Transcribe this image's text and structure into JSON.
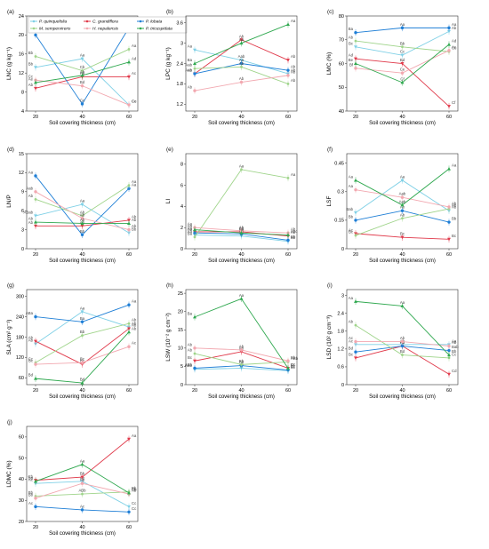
{
  "colors": {
    "P. quinquefolia": "#7fd0e6",
    "C. grandiflora": "#e0394a",
    "P. lobata": "#1f7fd6",
    "M. sempervirens": "#9fd48a",
    "H. nepalensis": "#f2a8b0",
    "P. tricuspidata": "#2fa84f"
  },
  "legend": [
    "P. quinquefolia",
    "C. grandiflora",
    "P. lobata",
    "M. sempervirens",
    "H. nepalensis",
    "P. tricuspidata"
  ],
  "x_label": "Soil covering thickness (cm)",
  "chart_data": [
    {
      "panel": "(a)",
      "type": "line",
      "ylabel": "LNC (g kg⁻¹)",
      "ylim": [
        4,
        24
      ],
      "yticks": [
        4,
        8,
        12,
        16,
        20,
        24
      ],
      "x": [
        20,
        40,
        60
      ],
      "series": [
        {
          "name": "P. quinquefolia",
          "values": [
            13.2,
            15.0,
            5.3
          ],
          "letters": [
            "Bb",
            "Aa",
            "Cc"
          ]
        },
        {
          "name": "C. grandiflora",
          "values": [
            8.8,
            11.2,
            11.2
          ],
          "letters": [
            "Ab",
            "Ab",
            "Ac"
          ]
        },
        {
          "name": "P. lobata",
          "values": [
            20.0,
            5.5,
            21.5
          ],
          "letters": [
            "Ba",
            "Cc",
            "Aa"
          ]
        },
        {
          "name": "M. sempervirens",
          "values": [
            15.5,
            12.5,
            17.0
          ],
          "letters": [
            "Bb",
            "Cb",
            "Aa"
          ]
        },
        {
          "name": "H. nepalensis",
          "values": [
            10.5,
            9.3,
            5.3
          ],
          "letters": [
            "Cc",
            "Bd",
            "Ce"
          ]
        },
        {
          "name": "P. tricuspidata",
          "values": [
            10.0,
            11.5,
            14.3
          ],
          "letters": [
            "Ae",
            "Ab",
            "Ad"
          ]
        }
      ]
    },
    {
      "panel": "(b)",
      "type": "line",
      "ylabel": "LPC (g kg⁻¹)",
      "ylim": [
        1.0,
        3.8
      ],
      "yticks": [
        1.2,
        1.8,
        2.4,
        3.0,
        3.6
      ],
      "x": [
        20,
        40,
        60
      ],
      "series": [
        {
          "name": "P. quinquefolia",
          "values": [
            2.8,
            2.5,
            2.1
          ],
          "letters": [
            "Aa",
            "Aab",
            "Ab"
          ]
        },
        {
          "name": "C. grandiflora",
          "values": [
            2.1,
            3.1,
            2.5
          ],
          "letters": [
            "Ab",
            "Ab",
            "Ab"
          ]
        },
        {
          "name": "P. lobata",
          "values": [
            2.1,
            2.4,
            2.2
          ],
          "letters": [
            "Aab",
            "Aa",
            "Ab"
          ]
        },
        {
          "name": "M. sempervirens",
          "values": [
            2.25,
            2.3,
            1.8
          ],
          "letters": [
            "Aab",
            "Ab",
            "Ab"
          ]
        },
        {
          "name": "H. nepalensis",
          "values": [
            1.6,
            1.85,
            2.05
          ],
          "letters": [
            "Ab",
            "Ab",
            "Ab"
          ]
        },
        {
          "name": "P. tricuspidata",
          "values": [
            2.4,
            3.0,
            3.55
          ],
          "letters": [
            "Ba",
            "Aa",
            "Aa"
          ]
        }
      ]
    },
    {
      "panel": "(c)",
      "type": "line",
      "ylabel": "LMC (%)",
      "ylim": [
        40,
        80
      ],
      "yticks": [
        40,
        50,
        60,
        70,
        80
      ],
      "x": [
        20,
        40,
        60
      ],
      "series": [
        {
          "name": "P. quinquefolia",
          "values": [
            67.0,
            63.5,
            73.5
          ],
          "letters": [
            "Bc",
            "Cc",
            "Ab"
          ]
        },
        {
          "name": "C. grandiflora",
          "values": [
            62.0,
            60.0,
            42.0
          ],
          "letters": [
            "Ad",
            "Bd",
            "Cf"
          ]
        },
        {
          "name": "P. lobata",
          "values": [
            73.0,
            75.0,
            75.0
          ],
          "letters": [
            "Ba",
            "Aa",
            "Aa"
          ]
        },
        {
          "name": "M. sempervirens",
          "values": [
            69.5,
            67.0,
            65.0
          ],
          "letters": [
            "Ab",
            "Bb",
            "Ce"
          ]
        },
        {
          "name": "H. nepalensis",
          "values": [
            58.0,
            56.0,
            65.5
          ],
          "letters": [
            "Bf",
            "Ce",
            "Ac"
          ]
        },
        {
          "name": "P. tricuspidata",
          "values": [
            60.0,
            52.0,
            68.0
          ],
          "letters": [
            "Be",
            "Cf",
            "Ad"
          ]
        }
      ]
    },
    {
      "panel": "(d)",
      "type": "line",
      "ylabel": "LN/P",
      "ylim": [
        0,
        15
      ],
      "yticks": [
        0,
        3,
        6,
        9,
        12,
        15
      ],
      "x": [
        20,
        40,
        60
      ],
      "series": [
        {
          "name": "P. quinquefolia",
          "values": [
            5.2,
            7.0,
            2.5
          ],
          "letters": [
            "ABab",
            "Aa",
            "Bb"
          ]
        },
        {
          "name": "C. grandiflora",
          "values": [
            3.6,
            3.6,
            4.5
          ],
          "letters": [
            "Ab",
            "Ab",
            "Ab"
          ]
        },
        {
          "name": "P. lobata",
          "values": [
            11.5,
            2.2,
            9.5
          ],
          "letters": [
            "Aa",
            "Bb",
            "Aa"
          ]
        },
        {
          "name": "M. sempervirens",
          "values": [
            7.8,
            5.2,
            10.0
          ],
          "letters": [
            "Ab",
            "Ab",
            "Aa"
          ]
        },
        {
          "name": "H. nepalensis",
          "values": [
            9.0,
            4.8,
            3.0
          ],
          "letters": [
            "Aab",
            "Ab",
            "Ab"
          ]
        },
        {
          "name": "P. tricuspidata",
          "values": [
            4.2,
            4.0,
            4.0
          ],
          "letters": [
            "Ab",
            "Ab",
            "Ab"
          ]
        }
      ]
    },
    {
      "panel": "(e)",
      "type": "line",
      "ylabel": "LI",
      "ylim": [
        0,
        9
      ],
      "yticks": [
        0,
        2,
        4,
        6,
        8
      ],
      "x": [
        20,
        40,
        60
      ],
      "series": [
        {
          "name": "P. quinquefolia",
          "values": [
            1.3,
            1.2,
            0.7
          ],
          "letters": [
            "Aa",
            "Ab",
            "Bb"
          ]
        },
        {
          "name": "C. grandiflora",
          "values": [
            1.6,
            1.6,
            1.2
          ],
          "letters": [
            "Aa",
            "Ab",
            "Ab"
          ]
        },
        {
          "name": "P. lobata",
          "values": [
            1.5,
            1.4,
            0.8
          ],
          "letters": [
            "Aa",
            "Ab",
            "Bb"
          ]
        },
        {
          "name": "M. sempervirens",
          "values": [
            1.1,
            7.5,
            6.7
          ],
          "letters": [
            "Ba",
            "Aa",
            "Aa"
          ]
        },
        {
          "name": "H. nepalensis",
          "values": [
            2.0,
            1.7,
            1.5
          ],
          "letters": [
            "Aa",
            "Ab",
            "Ab"
          ]
        },
        {
          "name": "P. tricuspidata",
          "values": [
            1.8,
            1.5,
            1.3
          ],
          "letters": [
            "Aa",
            "Ab",
            "Abc"
          ]
        }
      ]
    },
    {
      "panel": "(f)",
      "type": "line",
      "ylabel": "LSF",
      "ylim": [
        0,
        0.5
      ],
      "yticks": [
        0.0,
        0.15,
        0.3,
        0.45
      ],
      "x": [
        20,
        40,
        60
      ],
      "series": [
        {
          "name": "P. quinquefolia",
          "values": [
            0.19,
            0.36,
            0.2
          ],
          "letters": [
            "Bab",
            "Aa",
            "Ab"
          ]
        },
        {
          "name": "C. grandiflora",
          "values": [
            0.08,
            0.06,
            0.05
          ],
          "letters": [
            "Ac",
            "Bc",
            "Bc"
          ]
        },
        {
          "name": "P. lobata",
          "values": [
            0.15,
            0.2,
            0.14
          ],
          "letters": [
            "Bb",
            "Ab",
            "Bb"
          ]
        },
        {
          "name": "M. sempervirens",
          "values": [
            0.07,
            0.16,
            0.21
          ],
          "letters": [
            "Bc",
            "Ab",
            "Ab"
          ]
        },
        {
          "name": "H. nepalensis",
          "values": [
            0.31,
            0.27,
            0.22
          ],
          "letters": [
            "Aa",
            "Aab",
            "Ab"
          ]
        },
        {
          "name": "P. tricuspidata",
          "values": [
            0.36,
            0.23,
            0.42
          ],
          "letters": [
            "Aa",
            "Aab",
            "Aa"
          ]
        }
      ]
    },
    {
      "panel": "(g)",
      "type": "line",
      "ylabel": "SLA (cm² g⁻¹)",
      "ylim": [
        40,
        320
      ],
      "yticks": [
        60,
        120,
        180,
        240,
        300
      ],
      "x": [
        20,
        40,
        60
      ],
      "series": [
        {
          "name": "P. quinquefolia",
          "values": [
            160,
            255,
            210
          ],
          "letters": [
            "Ab",
            "Aa",
            "Ab"
          ]
        },
        {
          "name": "C. grandiflora",
          "values": [
            168,
            100,
            205
          ],
          "letters": [
            "Ab",
            "Bc",
            "Ab"
          ]
        },
        {
          "name": "P. lobata",
          "values": [
            240,
            225,
            275
          ],
          "letters": [
            "ABa",
            "Ba",
            "Aa"
          ]
        },
        {
          "name": "M. sempervirens",
          "values": [
            105,
            185,
            220
          ],
          "letters": [
            "Cc",
            "Bb",
            "Ab"
          ]
        },
        {
          "name": "H. nepalensis",
          "values": [
            100,
            105,
            152
          ],
          "letters": [
            "Bc",
            "Bc",
            "Ac"
          ]
        },
        {
          "name": "P. tricuspidata",
          "values": [
            58,
            45,
            195
          ],
          "letters": [
            "Bd",
            "Bd",
            "Ab"
          ]
        }
      ]
    },
    {
      "panel": "(h)",
      "type": "line",
      "ylabel": "LSW (10⁻² g cm⁻²)",
      "ylim": [
        0,
        26
      ],
      "yticks": [
        0,
        5,
        10,
        15,
        20,
        25
      ],
      "x": [
        20,
        40,
        60
      ],
      "series": [
        {
          "name": "P. quinquefolia",
          "values": [
            4.2,
            4.5,
            3.8
          ],
          "letters": [
            "ABb",
            "Ab",
            "Bc"
          ]
        },
        {
          "name": "C. grandiflora",
          "values": [
            6.5,
            9.0,
            4.5
          ],
          "letters": [
            "Bc",
            "Ab",
            "Bc"
          ]
        },
        {
          "name": "P. lobata",
          "values": [
            4.5,
            5.2,
            4.0
          ],
          "letters": [
            "ABb",
            "Ab",
            "Bc"
          ]
        },
        {
          "name": "M. sempervirens",
          "values": [
            8.5,
            5.5,
            6.2
          ],
          "letters": [
            "Ab",
            "Bb",
            "ABb"
          ]
        },
        {
          "name": "H. nepalensis",
          "values": [
            10.0,
            9.5,
            6.5
          ],
          "letters": [
            "Ab",
            "Ab",
            "Bb"
          ]
        },
        {
          "name": "P. tricuspidata",
          "values": [
            18.5,
            23.5,
            4.5
          ],
          "letters": [
            "Ba",
            "Aa",
            "Cc"
          ]
        }
      ]
    },
    {
      "panel": "(i)",
      "type": "line",
      "ylabel": "LSD (10² g cm⁻³)",
      "ylim": [
        0,
        3.2
      ],
      "yticks": [
        0.0,
        0.6,
        1.2,
        1.8,
        2.4,
        3.0
      ],
      "x": [
        20,
        40,
        60
      ],
      "series": [
        {
          "name": "P. quinquefolia",
          "values": [
            1.35,
            1.35,
            1.35
          ],
          "letters": [
            "Ac",
            "Ab",
            "Aa"
          ]
        },
        {
          "name": "C. grandiflora",
          "values": [
            0.9,
            1.3,
            0.35
          ],
          "letters": [
            "Bc",
            "Ab",
            "Cd"
          ]
        },
        {
          "name": "P. lobata",
          "values": [
            1.1,
            1.3,
            1.15
          ],
          "letters": [
            "Bd",
            "Ab",
            "Bab"
          ]
        },
        {
          "name": "M. sempervirens",
          "values": [
            2.0,
            1.0,
            0.9
          ],
          "letters": [
            "Ab",
            "Bd",
            "Cc"
          ]
        },
        {
          "name": "H. nepalensis",
          "values": [
            1.45,
            1.45,
            1.3
          ],
          "letters": [
            "Ac",
            "Ab",
            "Ab"
          ]
        },
        {
          "name": "P. tricuspidata",
          "values": [
            2.8,
            2.65,
            1.0
          ],
          "letters": [
            "Aa",
            "Aa",
            "Bb"
          ]
        }
      ]
    },
    {
      "panel": "(j)",
      "type": "line",
      "ylabel": "LDMC (%)",
      "ylim": [
        20,
        65
      ],
      "yticks": [
        20,
        30,
        40,
        50,
        60
      ],
      "x": [
        20,
        40,
        60
      ],
      "series": [
        {
          "name": "P. quinquefolia",
          "values": [
            38.0,
            39.0,
            27.0
          ],
          "letters": [
            "Ac",
            "Ab",
            "Cc"
          ]
        },
        {
          "name": "C. grandiflora",
          "values": [
            39.5,
            41.0,
            59.0
          ],
          "letters": [
            "Cb",
            "Bb",
            "Aa"
          ]
        },
        {
          "name": "P. lobata",
          "values": [
            27.0,
            25.5,
            24.5
          ],
          "letters": [
            "Ac",
            "Ac",
            "Cc"
          ]
        },
        {
          "name": "M. sempervirens",
          "values": [
            32.0,
            33.0,
            34.0
          ],
          "letters": [
            "Bb",
            "ABb",
            "Bb"
          ]
        },
        {
          "name": "H. nepalensis",
          "values": [
            31.0,
            38.0,
            33.0
          ],
          "letters": [
            "Bb",
            "Ab",
            "Ab"
          ]
        },
        {
          "name": "P. tricuspidata",
          "values": [
            39.0,
            47.0,
            33.5
          ],
          "letters": [
            "Ba",
            "Aa",
            "Cb"
          ]
        }
      ]
    }
  ]
}
